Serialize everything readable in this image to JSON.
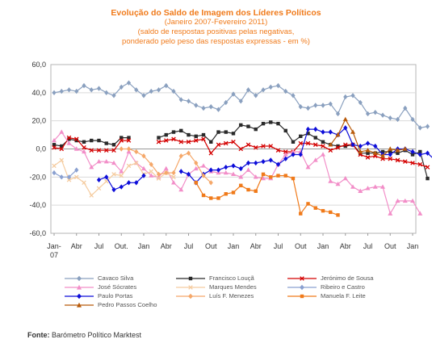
{
  "title": "Evolução do Saldo  de Imagem dos Líderes Políticos",
  "subtitle_lines": [
    "(Janeiro 2007-Fevereiro 2011)",
    "(saldo de respostas positivas pelas negativas,",
    "ponderado pelo peso das respostas expressas - em %)"
  ],
  "source": {
    "label": "Fonte:",
    "text": "Barómetro Político Marktest"
  },
  "chart_data": {
    "type": "line",
    "title": "Evolução do Saldo  de Imagem dos Líderes Políticos",
    "ylim": [
      -60,
      60
    ],
    "yticks": [
      "60,0",
      "40,0",
      "20,0",
      "0,0",
      "-20,0",
      "-40,0",
      "-60,0"
    ],
    "ytick_values": [
      60,
      40,
      20,
      0,
      -20,
      -40,
      -60
    ],
    "xticks": [
      {
        "label": "Jan-",
        "label2": "07",
        "month": 0
      },
      {
        "label": "Abr",
        "month": 3
      },
      {
        "label": "Jul",
        "month": 6
      },
      {
        "label": "Out.",
        "month": 9
      },
      {
        "label": "Jan",
        "month": 12
      },
      {
        "label": "Abr",
        "month": 15
      },
      {
        "label": "Jul",
        "month": 18
      },
      {
        "label": "Out",
        "month": 21
      },
      {
        "label": "Jan",
        "month": 24
      },
      {
        "label": "Abr",
        "month": 27
      },
      {
        "label": "Jul",
        "month": 30
      },
      {
        "label": "Out",
        "month": 33
      },
      {
        "label": "Jan",
        "month": 36
      },
      {
        "label": "Abr",
        "month": 39
      },
      {
        "label": "Jul",
        "month": 42
      },
      {
        "label": "Out",
        "month": 45
      },
      {
        "label": "Jan",
        "month": 48
      }
    ],
    "x_start": "2007-01",
    "x_end": "2011-02",
    "grid": true,
    "legend_position": "bottom",
    "series": [
      {
        "name": "Cavaco Silva",
        "color": "#8aa0bf",
        "marker": "diamond",
        "start": 0,
        "values": [
          40,
          41,
          42,
          41,
          45,
          42,
          43,
          40,
          38,
          44,
          47,
          42,
          38,
          41,
          42,
          45,
          41,
          35,
          34,
          31,
          29,
          30,
          28,
          33,
          39,
          34,
          42,
          38,
          42,
          44,
          45,
          41,
          38,
          30,
          29,
          31,
          31,
          32,
          25,
          37,
          38,
          33,
          25,
          26,
          24,
          22,
          21,
          29,
          21,
          15,
          16
        ]
      },
      {
        "name": "Francisco Louçã",
        "color": "#2a2a2a",
        "marker": "square",
        "start": 0,
        "values": [
          3,
          2,
          7,
          6,
          5,
          6,
          6,
          4,
          3,
          8,
          8,
          null,
          null,
          null,
          8,
          10,
          12,
          13,
          10,
          9,
          10,
          5,
          12,
          12,
          11,
          17,
          16,
          14,
          18,
          19,
          18,
          13,
          5,
          9,
          11,
          8,
          5,
          3,
          2,
          2,
          3,
          -3,
          -3,
          -3,
          -2,
          -2,
          -3,
          -1,
          -4,
          -2,
          -21
        ]
      },
      {
        "name": "Jerónimo de Sousa",
        "color": "#d40000",
        "marker": "x",
        "start": 0,
        "values": [
          1,
          0,
          8,
          7,
          1,
          -1,
          -1,
          -1,
          -1,
          6,
          6,
          null,
          null,
          null,
          5,
          6,
          7,
          5,
          5,
          6,
          7,
          -3,
          3,
          4,
          5,
          0,
          3,
          1,
          2,
          2,
          -1,
          -2,
          -2,
          4,
          4,
          3,
          2,
          -1,
          1,
          3,
          3,
          -4,
          -6,
          -5,
          -7,
          -7,
          -8,
          -9,
          -10,
          -11,
          -13
        ]
      },
      {
        "name": "José Sócrates",
        "color": "#f28ec8",
        "marker": "triangle",
        "start": 0,
        "values": [
          6,
          12,
          4,
          0,
          -2,
          -13,
          -9,
          -9,
          -10,
          -16,
          -2,
          -10,
          -14,
          -19,
          -20,
          -14,
          -24,
          -29,
          -18,
          -14,
          -12,
          -16,
          -17,
          -17,
          -18,
          -20,
          -15,
          -20,
          -21,
          -21,
          -11,
          -4,
          -2,
          -2,
          -13,
          -8,
          -4,
          -23,
          -25,
          -21,
          -27,
          -30,
          -28,
          -27,
          -27,
          -46,
          -37,
          -37,
          -37,
          -46
        ]
      },
      {
        "name": "Marques Mendes",
        "color": "#f5cca0",
        "marker": "x",
        "start": 0,
        "values": [
          -12,
          -8,
          -22,
          -20,
          -24,
          -33,
          -28,
          -23,
          -18,
          -19,
          -12,
          -10,
          -18,
          -16,
          -21,
          -17,
          -20
        ]
      },
      {
        "name": "Ribeiro e Castro",
        "color": "#8aa0d0",
        "marker": "diamond",
        "start": 0,
        "values": [
          -17,
          -20,
          -20,
          -15
        ]
      },
      {
        "name": "Paulo Portas",
        "color": "#0d0dd9",
        "marker": "diamond",
        "start": 6,
        "values": [
          -22,
          -20,
          -29,
          -27,
          -24,
          -24,
          -19,
          null,
          null,
          null,
          null,
          -16,
          -18,
          -24,
          -18,
          -15,
          -15,
          -13,
          -12,
          -14,
          -10,
          -10,
          -9,
          -8,
          -11,
          -7,
          -4,
          -4,
          14,
          14,
          12,
          12,
          10,
          15,
          3,
          2,
          4,
          2,
          -4,
          -4,
          0,
          0,
          -2,
          -4,
          -3,
          -8,
          -5
        ]
      },
      {
        "name": "Luís F. Menezes",
        "color": "#f5a86a",
        "marker": "diamond",
        "start": 9,
        "values": [
          0,
          0,
          -2,
          -5,
          -11,
          -18,
          -17,
          -17,
          -5,
          -3,
          -10,
          -19,
          -24
        ]
      },
      {
        "name": "Manuela F. Leite",
        "color": "#f07a1a",
        "marker": "square",
        "start": 19,
        "values": [
          -24,
          -33,
          -35,
          -35,
          -32,
          -31,
          -26,
          -29,
          -30,
          -18,
          -20,
          -19,
          -19,
          -21,
          -46,
          -39,
          -42,
          -44,
          -45,
          -47
        ]
      },
      {
        "name": "Pedro Passos Coelho",
        "color": "#b85a0a",
        "marker": "triangle",
        "start": 37,
        "values": [
          3,
          10,
          21,
          12,
          -2,
          -1,
          -3,
          -5,
          0,
          -1,
          0
        ]
      }
    ]
  }
}
